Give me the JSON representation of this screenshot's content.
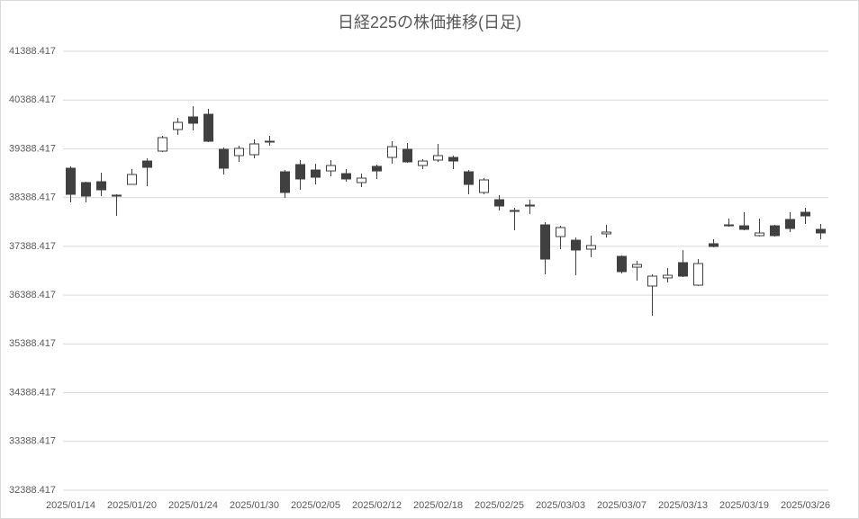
{
  "chart_data": {
    "type": "candlestick",
    "title": "日経225の株価推移(日足)",
    "categories": [
      "2025/01/14",
      null,
      null,
      null,
      "2025/01/20",
      null,
      null,
      null,
      "2025/01/24",
      null,
      null,
      null,
      "2025/01/30",
      null,
      null,
      null,
      "2025/02/05",
      null,
      null,
      null,
      "2025/02/12",
      null,
      null,
      null,
      "2025/02/18",
      null,
      null,
      null,
      "2025/02/25",
      null,
      null,
      null,
      "2025/03/03",
      null,
      null,
      null,
      "2025/03/07",
      null,
      null,
      null,
      "2025/03/13",
      null,
      null,
      null,
      "2025/03/19",
      null,
      null,
      null,
      "2025/03/26",
      null
    ],
    "open": [
      38991,
      38696,
      38714,
      38438,
      38659,
      39138,
      39341,
      39784,
      40042,
      40097,
      39378,
      39249,
      39267,
      39544,
      38917,
      39065,
      38954,
      38935,
      38880,
      38696,
      39028,
      39212,
      39378,
      39046,
      39157,
      39212,
      38917,
      38493,
      38345,
      38124,
      38235,
      37829,
      37589,
      37515,
      37331,
      37645,
      37183,
      36962,
      36575,
      36741,
      37054,
      36593,
      37442,
      37829,
      37810,
      37608,
      37810,
      37940,
      38087,
      37737
    ],
    "high": [
      39028,
      38714,
      38899,
      38456,
      38972,
      39194,
      39655,
      40024,
      40263,
      40208,
      39415,
      39452,
      39581,
      39655,
      38954,
      39157,
      39083,
      39157,
      38972,
      38880,
      39065,
      39544,
      39507,
      39175,
      39489,
      39249,
      38954,
      38788,
      38438,
      38179,
      38345,
      37884,
      37810,
      37571,
      37608,
      37829,
      37202,
      37091,
      36815,
      36944,
      37313,
      37128,
      37534,
      37958,
      38087,
      37958,
      37829,
      38087,
      38179,
      37847
    ],
    "low": [
      38290,
      38290,
      38419,
      38013,
      38659,
      38622,
      39323,
      39673,
      39765,
      39526,
      38862,
      39120,
      39194,
      39452,
      38382,
      38548,
      38659,
      38825,
      38714,
      38604,
      38770,
      39083,
      39101,
      38972,
      39120,
      38972,
      38456,
      38456,
      38124,
      37718,
      38050,
      36815,
      37331,
      36796,
      37165,
      37571,
      36833,
      36686,
      35966,
      36649,
      36759,
      36575,
      37368,
      37792,
      37718,
      37589,
      37589,
      37681,
      37847,
      37534
    ],
    "close": [
      38456,
      38419,
      38548,
      38419,
      38862,
      39009,
      39618,
      39931,
      39913,
      39544,
      38991,
      39397,
      39489,
      39526,
      38493,
      38770,
      38806,
      39046,
      38770,
      38788,
      38935,
      39433,
      39120,
      39138,
      39249,
      39138,
      38659,
      38751,
      38216,
      38106,
      38216,
      37128,
      37774,
      37313,
      37405,
      37681,
      36870,
      37017,
      36778,
      36796,
      36778,
      37036,
      37386,
      37810,
      37737,
      37663,
      37608,
      37755,
      38013,
      37663
    ],
    "up_color": "#ffffff",
    "down_color": "#404040",
    "line_color": "#404040",
    "ylim": [
      32388.417,
      41388.417
    ],
    "yticks": [
      32388.417,
      33388.417,
      34388.417,
      35388.417,
      36388.417,
      37388.417,
      38388.417,
      39388.417,
      40388.417,
      41388.417
    ],
    "grid": true
  }
}
